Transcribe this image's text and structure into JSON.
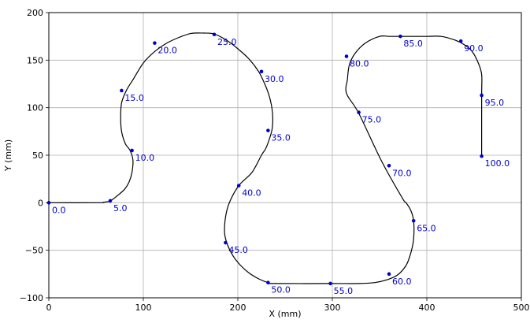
{
  "chart_data": {
    "type": "line",
    "xlabel": "X (mm)",
    "ylabel": "Y (mm)",
    "xlim": [
      0,
      500
    ],
    "ylim": [
      -100,
      200
    ],
    "xticks": [
      0,
      100,
      200,
      300,
      400,
      500
    ],
    "yticks": [
      -100,
      -50,
      0,
      50,
      100,
      150,
      200
    ],
    "grid": true,
    "colors": {
      "path": "#000000",
      "marker": "#0000cc",
      "label": "#0000cc",
      "grid": "#b0b0b0"
    },
    "path": {
      "x": [
        0,
        52,
        58,
        65,
        72,
        80,
        85,
        88,
        89,
        86,
        81,
        77,
        76,
        77,
        82,
        90,
        100,
        112,
        125,
        138,
        150,
        162,
        175,
        188,
        200,
        212,
        222,
        228,
        233,
        236,
        237,
        236,
        232,
        229,
        225,
        215,
        201,
        191,
        187,
        186,
        189,
        195,
        203,
        212,
        222,
        232,
        240,
        298,
        328,
        345,
        358,
        369,
        378,
        383,
        386,
        386,
        383,
        378,
        374,
        352,
        328,
        315,
        316,
        318,
        324,
        335,
        350,
        360,
        372,
        385,
        400,
        415,
        430,
        440,
        448,
        454,
        458,
        458,
        458
      ],
      "y": [
        0,
        0,
        0.5,
        2,
        7,
        14,
        22,
        32,
        45,
        55,
        62,
        75,
        90,
        105,
        118,
        131,
        147,
        159,
        168,
        174,
        178,
        178.5,
        177.5,
        171,
        162,
        151,
        138,
        126,
        113,
        100,
        88,
        76,
        63,
        56,
        50,
        32,
        18,
        0,
        -15,
        -32,
        -44,
        -56,
        -66,
        -74,
        -80,
        -84,
        -85,
        -85,
        -85,
        -84,
        -81,
        -76,
        -66,
        -53,
        -38,
        -19,
        -8,
        0,
        5,
        44,
        94,
        115,
        130,
        145,
        157,
        168,
        175,
        175,
        175,
        175,
        175,
        175,
        171,
        166,
        159,
        148,
        135,
        113,
        48
      ]
    },
    "markers": {
      "values": [
        0.0,
        5.0,
        10.0,
        15.0,
        20.0,
        25.0,
        30.0,
        35.0,
        40.0,
        45.0,
        50.0,
        55.0,
        60.0,
        65.0,
        70.0,
        75.0,
        80.0,
        85.0,
        90.0,
        95.0,
        100.0
      ],
      "labels": [
        "0.0",
        "5.0",
        "10.0",
        "15.0",
        "20.0",
        "25.0",
        "30.0",
        "35.0",
        "40.0",
        "45.0",
        "50.0",
        "55.0",
        "60.0",
        "65.0",
        "70.0",
        "75.0",
        "80.0",
        "85.0",
        "90.0",
        "95.0",
        "100.0"
      ],
      "x": [
        0,
        65,
        88,
        77,
        112,
        175,
        225,
        232,
        201,
        187,
        232,
        298,
        360,
        386,
        360,
        328,
        315,
        372,
        436,
        458,
        458
      ],
      "y": [
        0,
        2,
        55,
        118,
        168,
        177,
        138,
        76,
        18,
        -42,
        -84,
        -85,
        -75,
        -19,
        39,
        95,
        154,
        175,
        170,
        113,
        49
      ]
    }
  }
}
